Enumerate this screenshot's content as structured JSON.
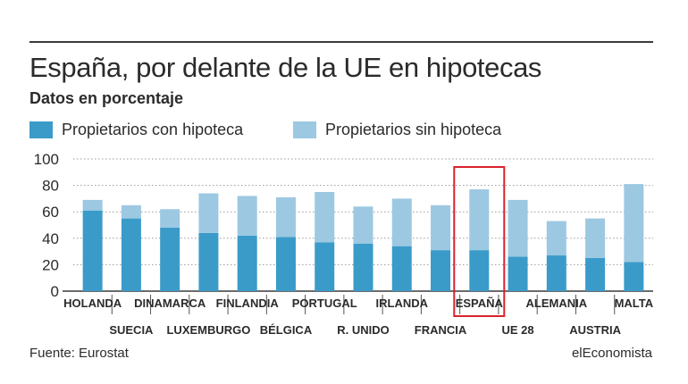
{
  "header": {
    "title": "España, por delante de la UE en hipotecas",
    "subtitle": "Datos en porcentaje"
  },
  "legend": {
    "items": [
      {
        "label": "Propietarios con hipoteca",
        "color": "#3a9bc9"
      },
      {
        "label": "Propietarios sin hipoteca",
        "color": "#9cc8e2"
      }
    ]
  },
  "footer": {
    "source": "Fuente: Eurostat",
    "brand": "elEconomista"
  },
  "chart_data": {
    "type": "bar",
    "stacked": true,
    "categories": [
      "HOLANDA",
      "SUECIA",
      "DINAMARCA",
      "LUXEMBURGO",
      "FINLANDIA",
      "BÉLGICA",
      "PORTUGAL",
      "R. UNIDO",
      "IRLANDA",
      "FRANCIA",
      "ESPAÑA",
      "UE 28",
      "ALEMANIA",
      "AUSTRIA",
      "MALTA"
    ],
    "series": [
      {
        "name": "Propietarios con hipoteca",
        "color": "#3a9bc9",
        "values": [
          61,
          55,
          48,
          44,
          42,
          41,
          37,
          36,
          34,
          31,
          31,
          26,
          27,
          25,
          22
        ]
      },
      {
        "name": "Propietarios sin hipoteca",
        "color": "#9cc8e2",
        "values": [
          8,
          10,
          14,
          30,
          30,
          30,
          38,
          28,
          36,
          34,
          46,
          43,
          26,
          30,
          59
        ]
      }
    ],
    "yticks": [
      0,
      20,
      40,
      60,
      80,
      100
    ],
    "ylim": [
      0,
      100
    ],
    "grid": "dotted",
    "highlight": "ESPAÑA",
    "highlight_color": "#d9232e"
  }
}
